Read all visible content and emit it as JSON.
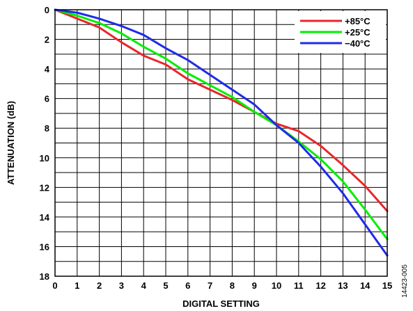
{
  "chart_data": {
    "type": "line",
    "title": "",
    "xlabel": "DIGITAL SETTING",
    "ylabel": "ATTENUATION (dB)",
    "x": [
      0,
      1,
      2,
      3,
      4,
      5,
      6,
      7,
      8,
      9,
      10,
      11,
      12,
      13,
      14,
      15
    ],
    "xlim": [
      0,
      15
    ],
    "ylim": [
      0,
      18
    ],
    "y_inverted": true,
    "x_ticks": [
      "0",
      "1",
      "2",
      "3",
      "4",
      "5",
      "6",
      "7",
      "8",
      "9",
      "10",
      "11",
      "12",
      "13",
      "14",
      "15"
    ],
    "y_ticks": [
      "0",
      "2",
      "4",
      "6",
      "8",
      "10",
      "12",
      "14",
      "16",
      "18"
    ],
    "grid": true,
    "legend_position": "top-right",
    "series": [
      {
        "name": "+85°C",
        "color": "#e8262a",
        "values": [
          0,
          0.6,
          1.2,
          2.2,
          3.1,
          3.7,
          4.7,
          5.4,
          6.1,
          6.9,
          7.7,
          8.2,
          9.2,
          10.5,
          11.9,
          13.6
        ]
      },
      {
        "name": "+25°C",
        "color": "#00ee00",
        "values": [
          0,
          0.4,
          0.9,
          1.6,
          2.5,
          3.3,
          4.3,
          5.1,
          5.9,
          6.9,
          7.8,
          8.9,
          10.1,
          11.6,
          13.5,
          15.5
        ]
      },
      {
        "name": "−40°C",
        "color": "#1f2be8",
        "values": [
          0,
          0.2,
          0.6,
          1.1,
          1.7,
          2.6,
          3.4,
          4.4,
          5.4,
          6.4,
          7.8,
          9.0,
          10.6,
          12.4,
          14.5,
          16.6
        ]
      }
    ]
  },
  "figure_id": "14423-005"
}
